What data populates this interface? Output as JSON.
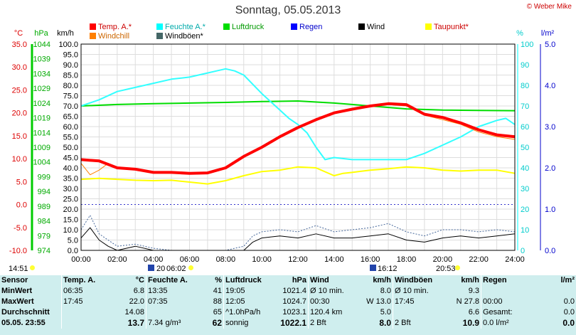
{
  "title": "Sonntag, 05.05.2013",
  "copyright": "© Weber Mike",
  "legend": [
    {
      "label": "Temp. A.*",
      "color": "#ff0000"
    },
    {
      "label": "Windchill",
      "color": "#ff8000"
    },
    {
      "label": "Feuchte A.*",
      "color": "#00ffff"
    },
    {
      "label": "Windböen*",
      "color": "#555555"
    },
    {
      "label": "Luftdruck",
      "color": "#00dd00"
    },
    {
      "label": "Regen",
      "color": "#0000ff"
    },
    {
      "label": "Wind",
      "color": "#000000"
    },
    {
      "label": "Taupunkt*",
      "color": "#ffff00"
    }
  ],
  "axes": {
    "temp_unit": "°C",
    "pressure_unit": "hPa",
    "wind_unit": "km/h",
    "humidity_unit": "%",
    "rain_unit": "l/m²",
    "temp_ticks": [
      "35.0",
      "30.0",
      "25.0",
      "20.0",
      "15.0",
      "10.0",
      "5.0",
      "0.0",
      "-5.0",
      "-10.0"
    ],
    "pressure_ticks": [
      "1044",
      "1039",
      "1034",
      "1029",
      "1024",
      "1019",
      "1014",
      "1009",
      "1004",
      "999",
      "994",
      "989",
      "984",
      "979",
      "974"
    ],
    "wind_ticks": [
      "100.0",
      "95.0",
      "90.0",
      "85.0",
      "80.0",
      "75.0",
      "70.0",
      "65.0",
      "60.0",
      "55.0",
      "50.0",
      "45.0",
      "40.0",
      "35.0",
      "30.0",
      "25.0",
      "20.0",
      "15.0",
      "10.0",
      "5.0",
      "0.0"
    ],
    "humidity_ticks": [
      "100",
      "90",
      "80",
      "70",
      "60",
      "50",
      "40",
      "30",
      "20",
      "10",
      "0"
    ],
    "rain_ticks": [
      "5.0",
      "4.0",
      "3.0",
      "2.0",
      "1.0",
      "0.0"
    ],
    "time_ticks": [
      "00:00",
      "02:00",
      "04:00",
      "06:00",
      "08:00",
      "10:00",
      "12:00",
      "14:00",
      "16:00",
      "18:00",
      "20:00",
      "22:00",
      "24:00"
    ]
  },
  "sun_moon": {
    "sunset_prev": "14:51",
    "t1": "20",
    "sunrise": "06:02",
    "moon": "16:12",
    "sunset": "20:53"
  },
  "chart_data": {
    "type": "line",
    "title": "Sonntag, 05.05.2013",
    "x_unit": "hours",
    "xlim": [
      0,
      24
    ],
    "series": [
      {
        "name": "Temp. A.*",
        "axis": "temp_C",
        "ylim": [
          -10,
          35
        ],
        "x": [
          0,
          1,
          2,
          3,
          4,
          5,
          6,
          7,
          8,
          9,
          10,
          11,
          12,
          13,
          14,
          15,
          16,
          17,
          18,
          19,
          20,
          21,
          22,
          23,
          24
        ],
        "values": [
          9.8,
          9.5,
          8.0,
          7.7,
          7.0,
          7.0,
          6.8,
          6.9,
          8.0,
          10.5,
          12.5,
          14.8,
          16.8,
          18.5,
          20.0,
          20.8,
          21.5,
          22.0,
          21.8,
          19.7,
          19.0,
          17.8,
          16.3,
          15.2,
          14.8
        ]
      },
      {
        "name": "Windchill",
        "axis": "temp_C",
        "ylim": [
          -10,
          35
        ],
        "x": [
          0,
          0.5,
          1,
          1.5,
          2,
          3,
          4,
          5,
          6,
          7,
          8,
          9,
          10,
          11,
          12,
          13,
          14,
          15,
          16,
          17,
          18,
          19,
          20,
          21,
          22,
          23,
          24
        ],
        "values": [
          9.0,
          6.5,
          7.5,
          9.0,
          8.0,
          7.6,
          6.9,
          6.9,
          6.8,
          6.9,
          8.0,
          10.5,
          12.5,
          14.8,
          16.8,
          18.5,
          20.0,
          20.8,
          21.4,
          21.8,
          21.5,
          19.5,
          18.5,
          17.5,
          15.8,
          14.8,
          14.2
        ]
      },
      {
        "name": "Feuchte A.*",
        "axis": "humidity_pct",
        "ylim": [
          0,
          100
        ],
        "x": [
          0,
          1,
          2,
          3,
          4,
          5,
          6,
          7,
          7.5,
          8,
          8.5,
          9,
          10,
          11,
          11.5,
          12,
          12.5,
          13,
          13.5,
          14,
          15,
          16,
          17,
          18,
          19,
          20,
          21,
          22,
          23,
          23.5,
          24
        ],
        "values": [
          70,
          73,
          77,
          79,
          81,
          83,
          84,
          86,
          87,
          88,
          87,
          85,
          76,
          68,
          64,
          61,
          57,
          50,
          44,
          45,
          44,
          44,
          44,
          44,
          47,
          51,
          55,
          60,
          63,
          64,
          61
        ]
      },
      {
        "name": "Luftdruck",
        "axis": "pressure_hPa",
        "ylim": [
          974,
          1044
        ],
        "x": [
          0,
          2,
          4,
          6,
          8,
          10,
          12,
          14,
          16,
          18,
          20,
          22,
          24
        ],
        "values": [
          1023.0,
          1023.5,
          1023.8,
          1024.0,
          1024.2,
          1024.5,
          1024.7,
          1024.0,
          1023.0,
          1022.0,
          1021.6,
          1021.5,
          1021.4
        ]
      },
      {
        "name": "Taupunkt*",
        "axis": "temp_C",
        "ylim": [
          -10,
          35
        ],
        "x": [
          0,
          1,
          2,
          3,
          4,
          5,
          6,
          7,
          8,
          9,
          10,
          11,
          12,
          13,
          14,
          14.5,
          15,
          16,
          17,
          18,
          19,
          20,
          21,
          22,
          23,
          24
        ],
        "values": [
          5.5,
          5.7,
          5.5,
          5.3,
          5.2,
          5.3,
          4.9,
          4.5,
          5.2,
          6.3,
          7.2,
          7.5,
          8.2,
          8.0,
          6.3,
          6.8,
          7.0,
          7.5,
          7.8,
          8.2,
          8.0,
          7.5,
          7.3,
          7.5,
          7.5,
          6.8
        ]
      },
      {
        "name": "Wind",
        "axis": "wind_kmh",
        "ylim": [
          0,
          100
        ],
        "x": [
          0,
          0.5,
          1,
          1.5,
          2,
          3,
          4,
          5,
          6,
          7,
          8,
          9,
          9.5,
          10,
          11,
          12,
          13,
          14,
          15,
          16,
          17,
          18,
          19,
          20,
          21,
          22,
          23,
          24
        ],
        "values": [
          6,
          11,
          5,
          2,
          0,
          2,
          0,
          0,
          0,
          0,
          0,
          0,
          4,
          6,
          7,
          6,
          8,
          6,
          6,
          7,
          8,
          5,
          4,
          6,
          7,
          6,
          7,
          8
        ]
      },
      {
        "name": "Windböen*",
        "axis": "wind_kmh",
        "ylim": [
          0,
          100
        ],
        "x": [
          0,
          0.5,
          1,
          1.5,
          2,
          3,
          4,
          5,
          6,
          7,
          8,
          9,
          9.5,
          10,
          11,
          12,
          13,
          14,
          15,
          16,
          17,
          18,
          19,
          20,
          21,
          22,
          23,
          24
        ],
        "values": [
          10,
          17,
          8,
          5,
          2,
          3,
          1,
          0,
          0,
          0,
          0,
          2,
          7,
          9,
          10,
          9,
          12,
          9,
          10,
          11,
          13,
          9,
          7,
          10,
          10,
          9,
          10,
          9
        ]
      },
      {
        "name": "Regen",
        "axis": "rain_lm2",
        "ylim": [
          0,
          5
        ],
        "x": [
          0,
          24
        ],
        "values": [
          0,
          0
        ]
      }
    ]
  },
  "summary": {
    "headers": {
      "sensor": "Sensor",
      "temp": "Temp. A.",
      "temp_unit": "°C",
      "hum": "Feuchte A.",
      "hum_unit": "%",
      "press": "Luftdruck",
      "press_unit": "hPa",
      "wind": "Wind",
      "wind_unit": "km/h",
      "gust": "Windböen",
      "gust_unit": "km/h",
      "rain": "Regen",
      "rain_unit": "l/m²"
    },
    "rows": [
      {
        "label": "MinWert",
        "temp_t": "06:35",
        "temp_v": "6.8",
        "hum_t": "13:35",
        "hum_v": "41",
        "press_t": "19:05",
        "press_v": "1021.4",
        "wind_t": "Ø 10 min.",
        "wind_v": "8.0",
        "gust_t": "Ø 10 min.",
        "gust_v": "9.3",
        "rain_t": "",
        "rain_v": ""
      },
      {
        "label": "MaxWert",
        "temp_t": "17:45",
        "temp_v": "22.0",
        "hum_t": "07:35",
        "hum_v": "88",
        "press_t": "12:05",
        "press_v": "1024.7",
        "wind_t": "00:30",
        "wind_v": "W 13.0",
        "gust_t": "17:45",
        "gust_v": "N 27.8",
        "rain_t": "00:00",
        "rain_v": "0.0"
      },
      {
        "label": "Durchschnitt",
        "temp_t": "",
        "temp_v": "14.08",
        "hum_t": "",
        "hum_v": "65",
        "press_t": "^1.0hPa/h",
        "press_v": "1023.1",
        "wind_t": "120.4 km",
        "wind_v": "5.0",
        "gust_t": "",
        "gust_v": "6.6",
        "rain_t": "Gesamt:",
        "rain_v": "0.0"
      },
      {
        "label": "05.05. 23:55",
        "temp_t": "",
        "temp_v": "13.7",
        "hum_t": "7.34 g/m³",
        "hum_v": "62",
        "press_t": "sonnig",
        "press_v": "1022.1",
        "wind_t": "2 Bft",
        "wind_v": "8.0",
        "gust_t": "2 Bft",
        "gust_v": "10.9",
        "rain_t": "0.0 l/m²",
        "rain_v": "0.0"
      }
    ]
  }
}
